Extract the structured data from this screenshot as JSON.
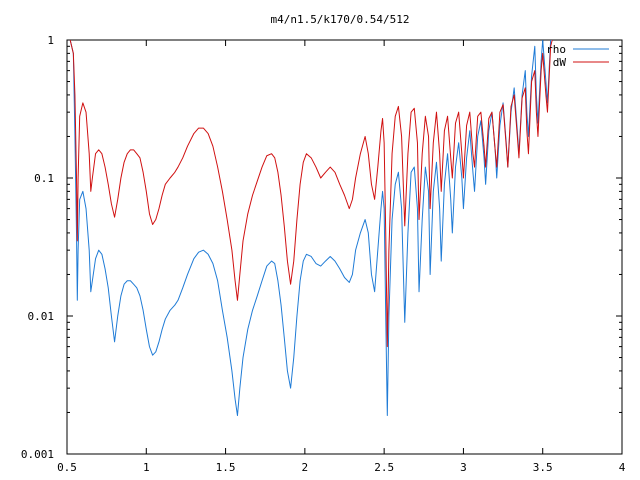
{
  "chart_data": {
    "type": "line",
    "title": "m4/n1.5/k170/0.54/512",
    "xlabel": "",
    "ylabel": "",
    "xlim": [
      0.5,
      4
    ],
    "ylim": [
      0.001,
      1
    ],
    "yscale": "log",
    "grid": false,
    "legend_position": "top-right",
    "x_ticks": [
      {
        "value": 0.5,
        "label": "0.5"
      },
      {
        "value": 1,
        "label": "1"
      },
      {
        "value": 1.5,
        "label": "1.5"
      },
      {
        "value": 2,
        "label": "2"
      },
      {
        "value": 2.5,
        "label": "2.5"
      },
      {
        "value": 3,
        "label": "3"
      },
      {
        "value": 3.5,
        "label": "3.5"
      },
      {
        "value": 4,
        "label": "4"
      }
    ],
    "y_ticks": [
      {
        "value": 1,
        "label": "1"
      },
      {
        "value": 0.1,
        "label": "0.1"
      },
      {
        "value": 0.01,
        "label": "0.01"
      },
      {
        "value": 0.001,
        "label": "0.001"
      }
    ],
    "series": [
      {
        "name": "rho",
        "color": "#1f7bd6",
        "points": [
          [
            0.52,
            1.0
          ],
          [
            0.54,
            0.8
          ],
          [
            0.55,
            0.2
          ],
          [
            0.56,
            0.04
          ],
          [
            0.565,
            0.013
          ],
          [
            0.57,
            0.03
          ],
          [
            0.58,
            0.07
          ],
          [
            0.6,
            0.08
          ],
          [
            0.62,
            0.06
          ],
          [
            0.64,
            0.03
          ],
          [
            0.65,
            0.015
          ],
          [
            0.66,
            0.018
          ],
          [
            0.68,
            0.026
          ],
          [
            0.7,
            0.03
          ],
          [
            0.72,
            0.028
          ],
          [
            0.74,
            0.022
          ],
          [
            0.76,
            0.016
          ],
          [
            0.78,
            0.01
          ],
          [
            0.8,
            0.0065
          ],
          [
            0.82,
            0.01
          ],
          [
            0.84,
            0.014
          ],
          [
            0.86,
            0.017
          ],
          [
            0.88,
            0.018
          ],
          [
            0.9,
            0.018
          ],
          [
            0.92,
            0.017
          ],
          [
            0.94,
            0.016
          ],
          [
            0.96,
            0.014
          ],
          [
            0.98,
            0.011
          ],
          [
            1.0,
            0.008
          ],
          [
            1.02,
            0.006
          ],
          [
            1.04,
            0.0052
          ],
          [
            1.06,
            0.0055
          ],
          [
            1.08,
            0.0065
          ],
          [
            1.1,
            0.008
          ],
          [
            1.12,
            0.0095
          ],
          [
            1.15,
            0.011
          ],
          [
            1.18,
            0.012
          ],
          [
            1.2,
            0.013
          ],
          [
            1.23,
            0.016
          ],
          [
            1.26,
            0.02
          ],
          [
            1.3,
            0.026
          ],
          [
            1.33,
            0.029
          ],
          [
            1.36,
            0.03
          ],
          [
            1.39,
            0.028
          ],
          [
            1.42,
            0.024
          ],
          [
            1.45,
            0.018
          ],
          [
            1.48,
            0.011
          ],
          [
            1.51,
            0.007
          ],
          [
            1.54,
            0.004
          ],
          [
            1.56,
            0.0025
          ],
          [
            1.575,
            0.0019
          ],
          [
            1.59,
            0.003
          ],
          [
            1.61,
            0.005
          ],
          [
            1.64,
            0.008
          ],
          [
            1.67,
            0.011
          ],
          [
            1.7,
            0.014
          ],
          [
            1.73,
            0.018
          ],
          [
            1.76,
            0.023
          ],
          [
            1.79,
            0.025
          ],
          [
            1.81,
            0.024
          ],
          [
            1.83,
            0.018
          ],
          [
            1.85,
            0.012
          ],
          [
            1.87,
            0.007
          ],
          [
            1.89,
            0.004
          ],
          [
            1.91,
            0.003
          ],
          [
            1.93,
            0.005
          ],
          [
            1.95,
            0.01
          ],
          [
            1.97,
            0.018
          ],
          [
            1.99,
            0.025
          ],
          [
            2.01,
            0.028
          ],
          [
            2.04,
            0.027
          ],
          [
            2.07,
            0.024
          ],
          [
            2.1,
            0.023
          ],
          [
            2.13,
            0.025
          ],
          [
            2.16,
            0.027
          ],
          [
            2.19,
            0.025
          ],
          [
            2.22,
            0.022
          ],
          [
            2.25,
            0.019
          ],
          [
            2.28,
            0.0175
          ],
          [
            2.3,
            0.02
          ],
          [
            2.32,
            0.03
          ],
          [
            2.35,
            0.04
          ],
          [
            2.38,
            0.05
          ],
          [
            2.4,
            0.04
          ],
          [
            2.42,
            0.02
          ],
          [
            2.44,
            0.015
          ],
          [
            2.46,
            0.03
          ],
          [
            2.48,
            0.06
          ],
          [
            2.49,
            0.08
          ],
          [
            2.5,
            0.06
          ],
          [
            2.51,
            0.01
          ],
          [
            2.52,
            0.0019
          ],
          [
            2.53,
            0.01
          ],
          [
            2.55,
            0.05
          ],
          [
            2.57,
            0.09
          ],
          [
            2.59,
            0.11
          ],
          [
            2.61,
            0.06
          ],
          [
            2.63,
            0.009
          ],
          [
            2.65,
            0.04
          ],
          [
            2.67,
            0.11
          ],
          [
            2.69,
            0.12
          ],
          [
            2.71,
            0.06
          ],
          [
            2.72,
            0.015
          ],
          [
            2.74,
            0.05
          ],
          [
            2.76,
            0.12
          ],
          [
            2.78,
            0.08
          ],
          [
            2.79,
            0.02
          ],
          [
            2.81,
            0.08
          ],
          [
            2.83,
            0.13
          ],
          [
            2.85,
            0.06
          ],
          [
            2.86,
            0.025
          ],
          [
            2.88,
            0.09
          ],
          [
            2.9,
            0.15
          ],
          [
            2.92,
            0.07
          ],
          [
            2.93,
            0.04
          ],
          [
            2.95,
            0.12
          ],
          [
            2.97,
            0.18
          ],
          [
            2.99,
            0.1
          ],
          [
            3.0,
            0.06
          ],
          [
            3.02,
            0.14
          ],
          [
            3.04,
            0.22
          ],
          [
            3.06,
            0.11
          ],
          [
            3.07,
            0.08
          ],
          [
            3.09,
            0.2
          ],
          [
            3.11,
            0.26
          ],
          [
            3.13,
            0.14
          ],
          [
            3.14,
            0.09
          ],
          [
            3.16,
            0.22
          ],
          [
            3.18,
            0.3
          ],
          [
            3.2,
            0.16
          ],
          [
            3.21,
            0.1
          ],
          [
            3.23,
            0.24
          ],
          [
            3.25,
            0.35
          ],
          [
            3.27,
            0.18
          ],
          [
            3.28,
            0.12
          ],
          [
            3.3,
            0.3
          ],
          [
            3.32,
            0.45
          ],
          [
            3.34,
            0.22
          ],
          [
            3.35,
            0.15
          ],
          [
            3.37,
            0.4
          ],
          [
            3.39,
            0.6
          ],
          [
            3.4,
            0.3
          ],
          [
            3.41,
            0.2
          ],
          [
            3.43,
            0.55
          ],
          [
            3.45,
            0.9
          ],
          [
            3.46,
            0.4
          ],
          [
            3.47,
            0.25
          ],
          [
            3.49,
            0.7
          ],
          [
            3.5,
            1.0
          ],
          [
            3.52,
            0.5
          ],
          [
            3.53,
            0.35
          ],
          [
            3.55,
            1.0
          ],
          [
            3.56,
            1.0
          ]
        ]
      },
      {
        "name": "dW",
        "color": "#d01010",
        "points": [
          [
            0.52,
            1.0
          ],
          [
            0.54,
            0.8
          ],
          [
            0.55,
            0.4
          ],
          [
            0.56,
            0.1
          ],
          [
            0.565,
            0.035
          ],
          [
            0.57,
            0.1
          ],
          [
            0.58,
            0.28
          ],
          [
            0.6,
            0.35
          ],
          [
            0.62,
            0.3
          ],
          [
            0.64,
            0.15
          ],
          [
            0.65,
            0.08
          ],
          [
            0.66,
            0.1
          ],
          [
            0.68,
            0.15
          ],
          [
            0.7,
            0.16
          ],
          [
            0.72,
            0.15
          ],
          [
            0.74,
            0.12
          ],
          [
            0.76,
            0.09
          ],
          [
            0.78,
            0.065
          ],
          [
            0.8,
            0.052
          ],
          [
            0.82,
            0.07
          ],
          [
            0.84,
            0.1
          ],
          [
            0.86,
            0.13
          ],
          [
            0.88,
            0.15
          ],
          [
            0.9,
            0.16
          ],
          [
            0.92,
            0.16
          ],
          [
            0.94,
            0.15
          ],
          [
            0.96,
            0.14
          ],
          [
            0.98,
            0.11
          ],
          [
            1.0,
            0.08
          ],
          [
            1.02,
            0.055
          ],
          [
            1.04,
            0.046
          ],
          [
            1.06,
            0.05
          ],
          [
            1.08,
            0.06
          ],
          [
            1.1,
            0.075
          ],
          [
            1.12,
            0.09
          ],
          [
            1.15,
            0.1
          ],
          [
            1.18,
            0.11
          ],
          [
            1.2,
            0.12
          ],
          [
            1.23,
            0.14
          ],
          [
            1.26,
            0.17
          ],
          [
            1.3,
            0.21
          ],
          [
            1.33,
            0.23
          ],
          [
            1.36,
            0.23
          ],
          [
            1.39,
            0.21
          ],
          [
            1.42,
            0.17
          ],
          [
            1.45,
            0.12
          ],
          [
            1.48,
            0.08
          ],
          [
            1.51,
            0.05
          ],
          [
            1.54,
            0.03
          ],
          [
            1.56,
            0.018
          ],
          [
            1.575,
            0.013
          ],
          [
            1.59,
            0.02
          ],
          [
            1.61,
            0.035
          ],
          [
            1.64,
            0.055
          ],
          [
            1.67,
            0.075
          ],
          [
            1.7,
            0.095
          ],
          [
            1.73,
            0.12
          ],
          [
            1.76,
            0.145
          ],
          [
            1.79,
            0.15
          ],
          [
            1.81,
            0.14
          ],
          [
            1.83,
            0.11
          ],
          [
            1.85,
            0.075
          ],
          [
            1.87,
            0.045
          ],
          [
            1.89,
            0.025
          ],
          [
            1.91,
            0.017
          ],
          [
            1.93,
            0.025
          ],
          [
            1.95,
            0.05
          ],
          [
            1.97,
            0.09
          ],
          [
            1.99,
            0.13
          ],
          [
            2.01,
            0.15
          ],
          [
            2.04,
            0.14
          ],
          [
            2.07,
            0.12
          ],
          [
            2.1,
            0.1
          ],
          [
            2.13,
            0.11
          ],
          [
            2.16,
            0.12
          ],
          [
            2.19,
            0.11
          ],
          [
            2.22,
            0.09
          ],
          [
            2.25,
            0.075
          ],
          [
            2.28,
            0.06
          ],
          [
            2.3,
            0.07
          ],
          [
            2.32,
            0.1
          ],
          [
            2.35,
            0.15
          ],
          [
            2.38,
            0.2
          ],
          [
            2.4,
            0.15
          ],
          [
            2.42,
            0.09
          ],
          [
            2.44,
            0.07
          ],
          [
            2.46,
            0.12
          ],
          [
            2.48,
            0.22
          ],
          [
            2.49,
            0.27
          ],
          [
            2.5,
            0.18
          ],
          [
            2.51,
            0.04
          ],
          [
            2.52,
            0.006
          ],
          [
            2.53,
            0.03
          ],
          [
            2.55,
            0.15
          ],
          [
            2.57,
            0.28
          ],
          [
            2.59,
            0.33
          ],
          [
            2.61,
            0.2
          ],
          [
            2.63,
            0.045
          ],
          [
            2.65,
            0.15
          ],
          [
            2.67,
            0.3
          ],
          [
            2.69,
            0.32
          ],
          [
            2.71,
            0.18
          ],
          [
            2.72,
            0.05
          ],
          [
            2.74,
            0.15
          ],
          [
            2.76,
            0.28
          ],
          [
            2.78,
            0.2
          ],
          [
            2.79,
            0.06
          ],
          [
            2.81,
            0.18
          ],
          [
            2.83,
            0.3
          ],
          [
            2.85,
            0.15
          ],
          [
            2.86,
            0.08
          ],
          [
            2.88,
            0.22
          ],
          [
            2.9,
            0.28
          ],
          [
            2.92,
            0.14
          ],
          [
            2.93,
            0.1
          ],
          [
            2.95,
            0.25
          ],
          [
            2.97,
            0.3
          ],
          [
            2.99,
            0.15
          ],
          [
            3.0,
            0.1
          ],
          [
            3.02,
            0.24
          ],
          [
            3.04,
            0.3
          ],
          [
            3.06,
            0.15
          ],
          [
            3.07,
            0.12
          ],
          [
            3.09,
            0.28
          ],
          [
            3.11,
            0.3
          ],
          [
            3.13,
            0.17
          ],
          [
            3.14,
            0.12
          ],
          [
            3.16,
            0.27
          ],
          [
            3.18,
            0.3
          ],
          [
            3.2,
            0.16
          ],
          [
            3.21,
            0.12
          ],
          [
            3.23,
            0.3
          ],
          [
            3.25,
            0.34
          ],
          [
            3.27,
            0.17
          ],
          [
            3.28,
            0.12
          ],
          [
            3.3,
            0.33
          ],
          [
            3.32,
            0.4
          ],
          [
            3.34,
            0.2
          ],
          [
            3.35,
            0.14
          ],
          [
            3.37,
            0.38
          ],
          [
            3.39,
            0.45
          ],
          [
            3.4,
            0.22
          ],
          [
            3.41,
            0.15
          ],
          [
            3.43,
            0.5
          ],
          [
            3.45,
            0.6
          ],
          [
            3.46,
            0.3
          ],
          [
            3.47,
            0.2
          ],
          [
            3.49,
            0.6
          ],
          [
            3.5,
            0.8
          ],
          [
            3.52,
            0.4
          ],
          [
            3.53,
            0.3
          ],
          [
            3.55,
            0.9
          ],
          [
            3.56,
            1.0
          ]
        ]
      }
    ]
  }
}
